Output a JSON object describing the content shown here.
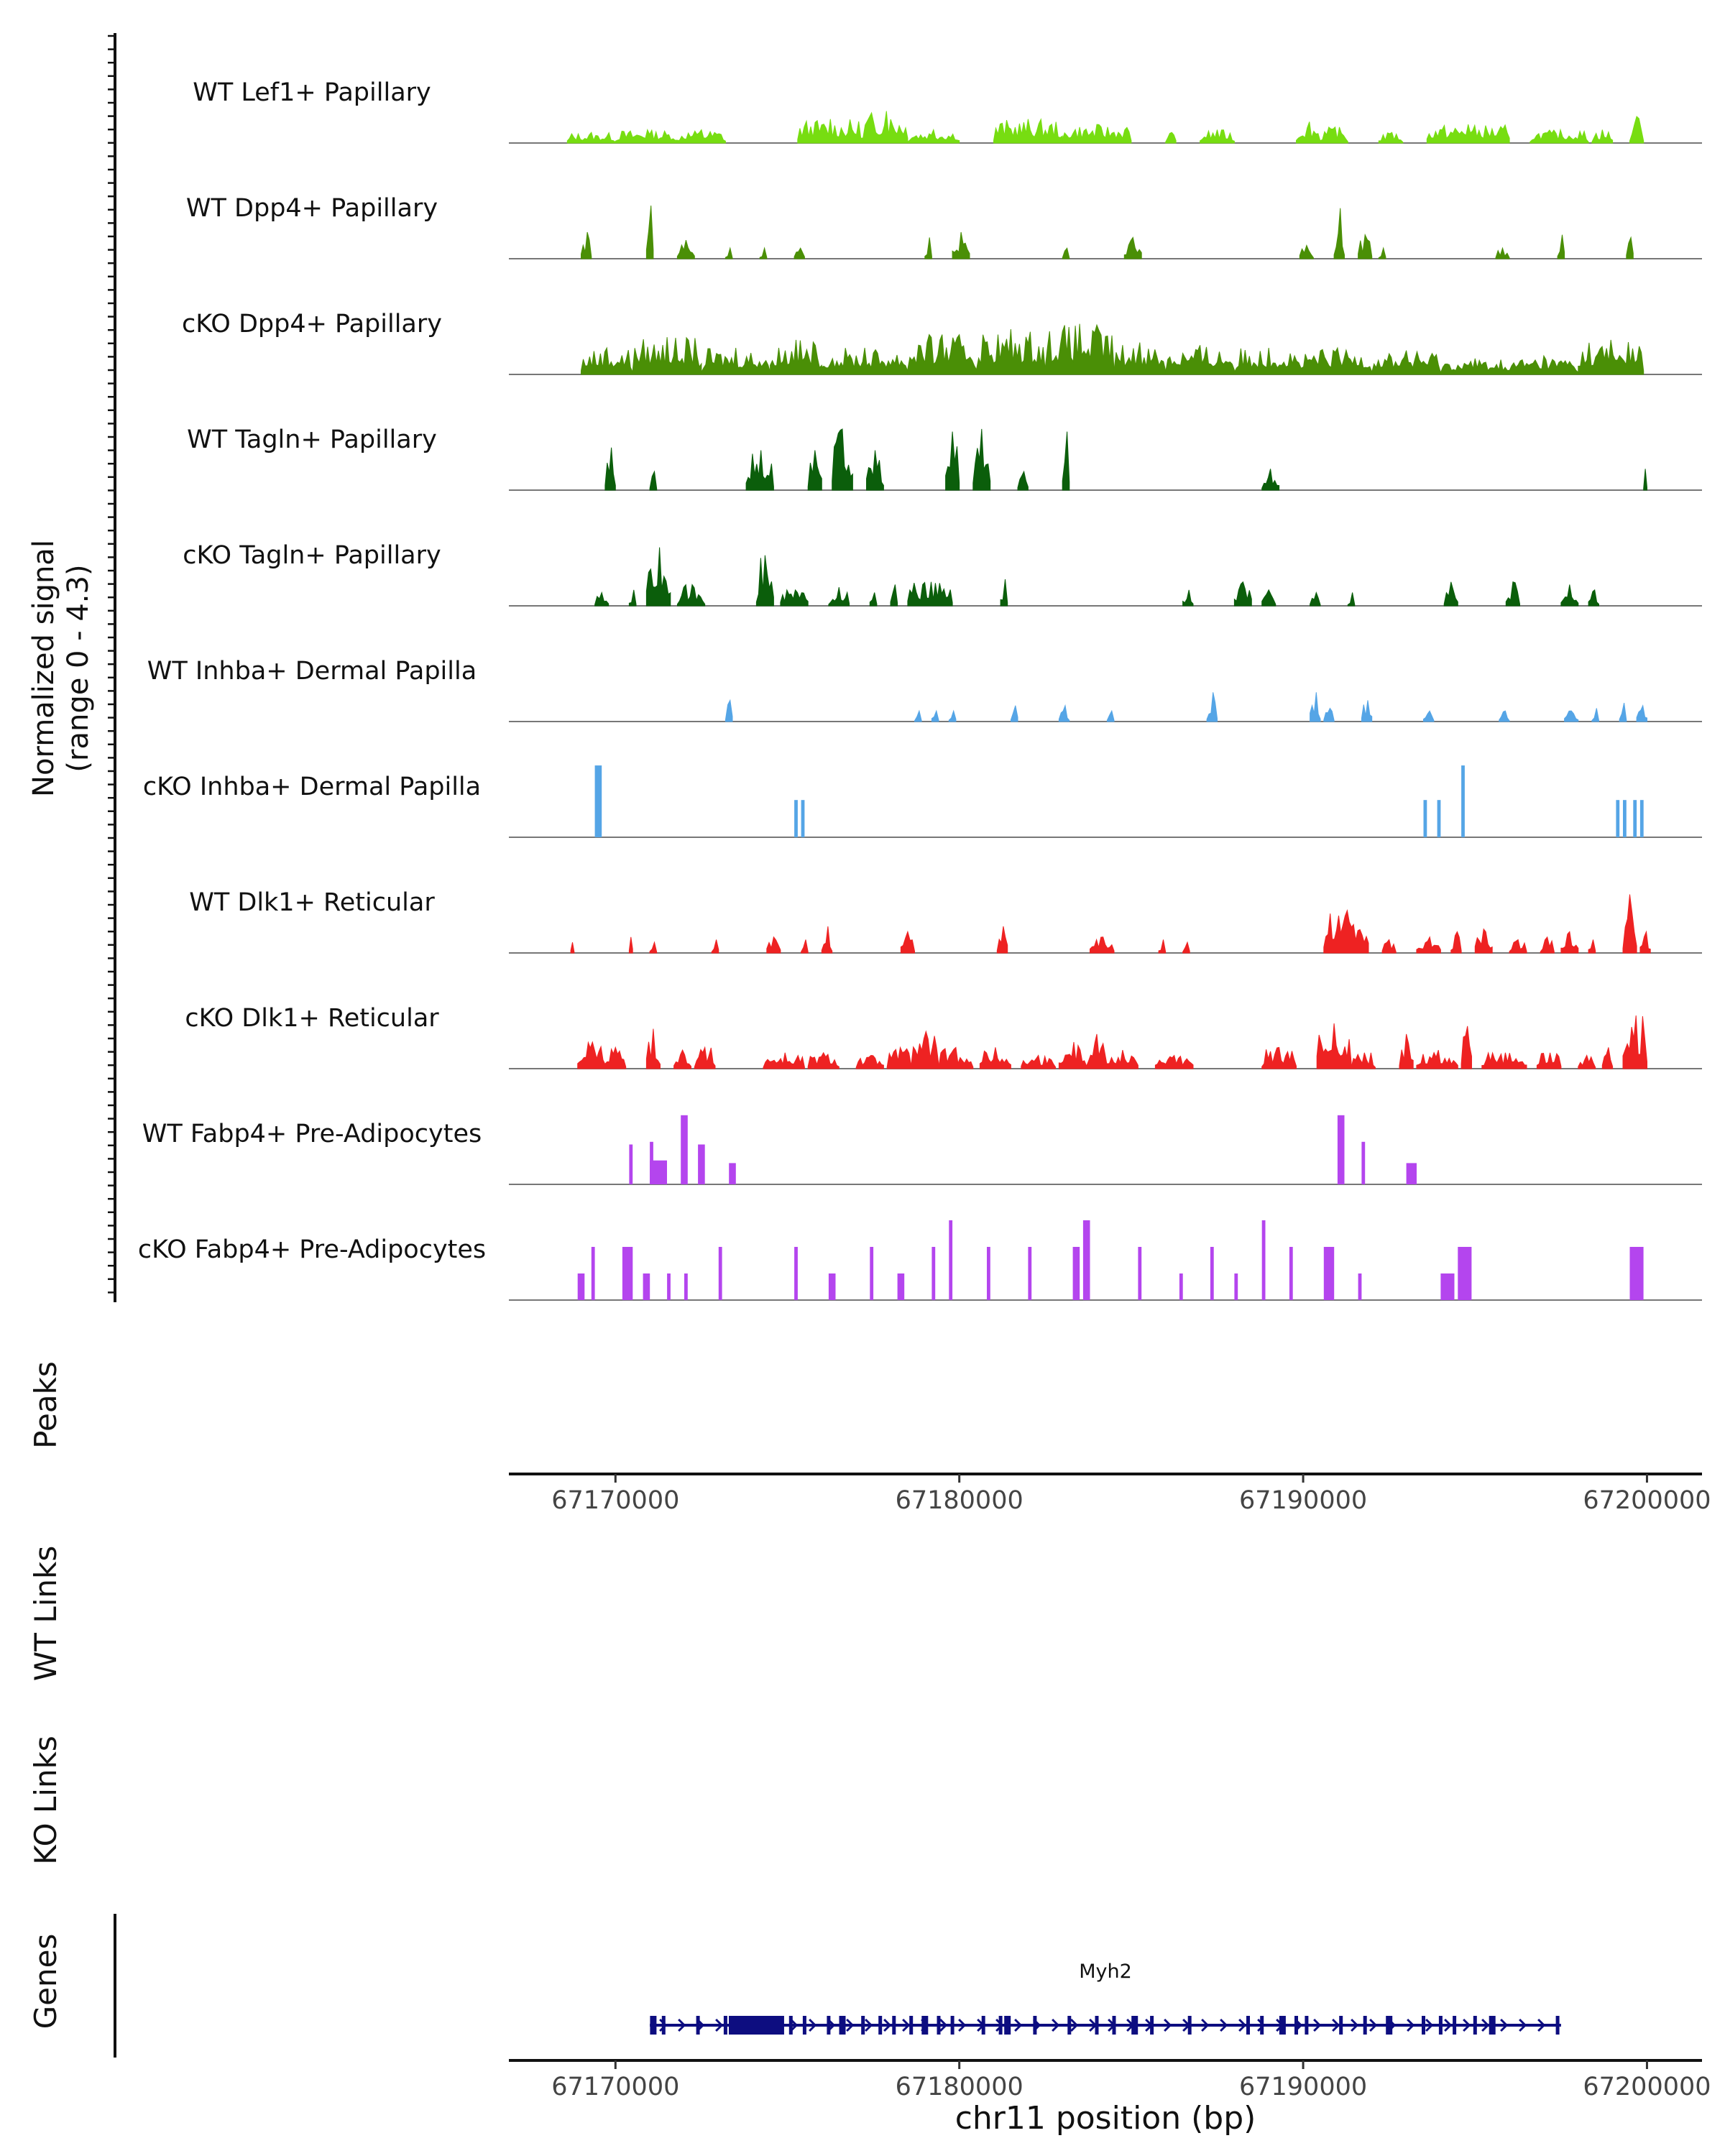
{
  "chart_data": {
    "type": "area",
    "title": "",
    "signal_axis": {
      "label_line1": "Normalized signal",
      "label_line2": "(range 0 - 4.3)",
      "ylim": [
        0,
        4.3
      ]
    },
    "x_axis": {
      "chromosome": "chr11",
      "xlabel": "chr11 position (bp)",
      "xlim": [
        67166900,
        67201600
      ],
      "ticks": [
        "67170000",
        "67180000",
        "67190000",
        "67200000"
      ],
      "tick_values": [
        67170000,
        67180000,
        67190000,
        67200000
      ]
    },
    "tracks": [
      {
        "name": "WT Lef1+ Papillary",
        "color": "#77dd11",
        "style": "area",
        "segments": [
          [
            67168.6,
            67170.0,
            0.4
          ],
          [
            67170.0,
            67171.8,
            0.5
          ],
          [
            67171.8,
            67173.2,
            0.5
          ],
          [
            67175.3,
            67177.2,
            0.9
          ],
          [
            67177.2,
            67178.5,
            1.2
          ],
          [
            67178.5,
            67180.0,
            0.5
          ],
          [
            67181.0,
            67183.0,
            0.9
          ],
          [
            67183.0,
            67185.0,
            0.7
          ],
          [
            67186.0,
            67186.3,
            0.4
          ],
          [
            67187.0,
            67188.0,
            0.5
          ],
          [
            67189.8,
            67190.5,
            0.8
          ],
          [
            67190.5,
            67191.3,
            0.6
          ],
          [
            67192.2,
            67192.9,
            0.4
          ],
          [
            67193.6,
            67196.0,
            0.7
          ],
          [
            67196.6,
            67198.3,
            0.5
          ],
          [
            67198.4,
            67199.0,
            0.5
          ],
          [
            67199.5,
            67199.9,
            1.0
          ]
        ]
      },
      {
        "name": "WT Dpp4+ Papillary",
        "color": "#4a8f06",
        "style": "area",
        "segments": [
          [
            67169.0,
            67169.3,
            1.0
          ],
          [
            67170.9,
            67171.1,
            2.0
          ],
          [
            67171.8,
            67172.3,
            0.7
          ],
          [
            67173.2,
            67173.4,
            0.4
          ],
          [
            67174.2,
            67174.4,
            0.4
          ],
          [
            67175.2,
            67175.5,
            0.4
          ],
          [
            67179.0,
            67179.2,
            0.8
          ],
          [
            67179.8,
            67180.3,
            1.0
          ],
          [
            67183.0,
            67183.2,
            0.4
          ],
          [
            67184.8,
            67185.3,
            0.8
          ],
          [
            67189.9,
            67190.3,
            0.5
          ],
          [
            67190.9,
            67191.2,
            1.9
          ],
          [
            67191.6,
            67192.0,
            0.9
          ],
          [
            67192.2,
            67192.4,
            0.4
          ],
          [
            67195.6,
            67196.0,
            0.4
          ],
          [
            67197.4,
            67197.6,
            0.9
          ],
          [
            67199.4,
            67199.6,
            0.8
          ]
        ]
      },
      {
        "name": "cKO Dpp4+ Papillary",
        "color": "#4a8f06",
        "style": "area",
        "segments": [
          [
            67169.0,
            67170.5,
            1.0
          ],
          [
            67170.5,
            67172.5,
            1.4
          ],
          [
            67172.5,
            67174.5,
            1.0
          ],
          [
            67174.5,
            67176.0,
            1.3
          ],
          [
            67176.0,
            67178.5,
            1.0
          ],
          [
            67178.5,
            67180.5,
            1.5
          ],
          [
            67180.5,
            67182.5,
            1.7
          ],
          [
            67182.5,
            67184.5,
            1.9
          ],
          [
            67184.5,
            67186.0,
            1.2
          ],
          [
            67186.0,
            67188.0,
            1.1
          ],
          [
            67188.0,
            67190.0,
            1.0
          ],
          [
            67190.0,
            67192.0,
            1.0
          ],
          [
            67192.0,
            67194.0,
            0.9
          ],
          [
            67194.0,
            67196.0,
            0.6
          ],
          [
            67196.0,
            67198.0,
            0.7
          ],
          [
            67198.0,
            67199.9,
            1.3
          ]
        ]
      },
      {
        "name": "WT Tagln+ Papillary",
        "color": "#0b5e0b",
        "style": "area",
        "segments": [
          [
            67169.7,
            67170.0,
            1.6
          ],
          [
            67171.0,
            67171.2,
            0.7
          ],
          [
            67173.8,
            67174.6,
            1.5
          ],
          [
            67175.6,
            67176.0,
            1.5
          ],
          [
            67176.3,
            67176.9,
            2.3
          ],
          [
            67177.3,
            67177.8,
            1.5
          ],
          [
            67179.6,
            67180.0,
            2.2
          ],
          [
            67180.4,
            67180.9,
            2.3
          ],
          [
            67181.7,
            67182.0,
            0.7
          ],
          [
            67183.0,
            67183.2,
            2.2
          ],
          [
            67188.8,
            67189.3,
            0.8
          ],
          [
            67199.9,
            67200.0,
            0.8
          ]
        ]
      },
      {
        "name": "cKO Tagln+ Papillary",
        "color": "#0b5e0b",
        "style": "area",
        "segments": [
          [
            67169.4,
            67169.8,
            0.5
          ],
          [
            67170.4,
            67170.6,
            0.6
          ],
          [
            67170.9,
            67171.6,
            2.2
          ],
          [
            67171.8,
            67172.6,
            0.8
          ],
          [
            67174.1,
            67174.6,
            1.9
          ],
          [
            67174.8,
            67175.6,
            0.6
          ],
          [
            67176.2,
            67176.8,
            0.7
          ],
          [
            67177.4,
            67177.6,
            0.5
          ],
          [
            67178.0,
            67178.2,
            0.8
          ],
          [
            67178.5,
            67179.8,
            0.9
          ],
          [
            67181.2,
            67181.4,
            1.0
          ],
          [
            67186.5,
            67186.8,
            0.6
          ],
          [
            67188.0,
            67188.5,
            0.9
          ],
          [
            67188.8,
            67189.2,
            0.6
          ],
          [
            67190.2,
            67190.5,
            0.5
          ],
          [
            67191.3,
            67191.5,
            0.5
          ],
          [
            67194.1,
            67194.5,
            0.9
          ],
          [
            67195.9,
            67196.3,
            0.9
          ],
          [
            67197.5,
            67198.0,
            0.8
          ],
          [
            67198.3,
            67198.6,
            0.6
          ]
        ]
      },
      {
        "name": "WT Inhba+ Dermal Papilla",
        "color": "#55a5e6",
        "style": "area",
        "segments": [
          [
            67173.2,
            67173.4,
            0.8
          ],
          [
            67178.7,
            67178.9,
            0.4
          ],
          [
            67179.2,
            67179.4,
            0.4
          ],
          [
            67179.7,
            67179.9,
            0.4
          ],
          [
            67181.5,
            67181.7,
            0.6
          ],
          [
            67182.9,
            67183.2,
            0.6
          ],
          [
            67184.3,
            67184.5,
            0.4
          ],
          [
            67187.2,
            67187.5,
            1.1
          ],
          [
            67190.2,
            67190.5,
            1.1
          ],
          [
            67190.6,
            67190.9,
            0.5
          ],
          [
            67191.7,
            67192.0,
            0.8
          ],
          [
            67193.5,
            67193.8,
            0.4
          ],
          [
            67195.7,
            67196.0,
            0.4
          ],
          [
            67197.6,
            67198.0,
            0.4
          ],
          [
            67198.4,
            67198.6,
            0.5
          ],
          [
            67199.2,
            67199.4,
            0.7
          ],
          [
            67199.7,
            67200.0,
            0.6
          ]
        ]
      },
      {
        "name": "cKO Inhba+ Dermal Papilla",
        "color": "#55a5e6",
        "style": "bars",
        "segments": [
          [
            67169.4,
            67169.6,
            2.7
          ],
          [
            67175.2,
            67175.3,
            1.4
          ],
          [
            67175.4,
            67175.5,
            1.4
          ],
          [
            67193.5,
            67193.6,
            1.4
          ],
          [
            67193.9,
            67194.0,
            1.4
          ],
          [
            67194.6,
            67194.7,
            2.7
          ],
          [
            67199.1,
            67199.2,
            1.4
          ],
          [
            67199.3,
            67199.4,
            1.4
          ],
          [
            67199.6,
            67199.7,
            1.4
          ],
          [
            67199.8,
            67199.9,
            1.4
          ]
        ]
      },
      {
        "name": "WT Dlk1+ Reticular",
        "color": "#ee2222",
        "style": "area",
        "segments": [
          [
            67168.7,
            67168.8,
            0.4
          ],
          [
            67170.4,
            67170.5,
            0.6
          ],
          [
            67171.0,
            67171.2,
            0.4
          ],
          [
            67172.8,
            67173.0,
            0.5
          ],
          [
            67174.4,
            67174.8,
            0.6
          ],
          [
            67175.4,
            67175.6,
            0.5
          ],
          [
            67176.0,
            67176.3,
            1.0
          ],
          [
            67178.3,
            67178.7,
            0.8
          ],
          [
            67181.1,
            67181.4,
            1.0
          ],
          [
            67183.8,
            67184.5,
            0.6
          ],
          [
            67185.8,
            67186.0,
            0.5
          ],
          [
            67186.5,
            67186.7,
            0.4
          ],
          [
            67190.6,
            67191.9,
            1.6
          ],
          [
            67192.3,
            67192.7,
            0.5
          ],
          [
            67193.3,
            67194.0,
            0.6
          ],
          [
            67194.3,
            67194.6,
            0.8
          ],
          [
            67195.0,
            67195.5,
            0.9
          ],
          [
            67196.0,
            67196.5,
            0.5
          ],
          [
            67196.9,
            67197.3,
            0.6
          ],
          [
            67197.5,
            67198.0,
            0.8
          ],
          [
            67198.3,
            67198.5,
            0.5
          ],
          [
            67199.3,
            67199.7,
            2.2
          ],
          [
            67199.8,
            67200.1,
            0.8
          ]
        ]
      },
      {
        "name": "cKO Dlk1+ Reticular",
        "color": "#ee2222",
        "style": "area",
        "segments": [
          [
            67168.9,
            67169.7,
            1.0
          ],
          [
            67169.7,
            67170.3,
            0.8
          ],
          [
            67170.9,
            67171.3,
            1.5
          ],
          [
            67171.7,
            67172.2,
            0.7
          ],
          [
            67172.3,
            67172.9,
            0.8
          ],
          [
            67174.3,
            67175.5,
            0.6
          ],
          [
            67175.6,
            67176.5,
            0.6
          ],
          [
            67177.0,
            67177.8,
            0.5
          ],
          [
            67177.9,
            67178.6,
            0.8
          ],
          [
            67178.6,
            67179.4,
            1.4
          ],
          [
            67179.4,
            67180.4,
            0.8
          ],
          [
            67180.6,
            67181.5,
            0.8
          ],
          [
            67181.8,
            67182.8,
            0.5
          ],
          [
            67182.9,
            67183.7,
            1.0
          ],
          [
            67183.7,
            67184.3,
            1.3
          ],
          [
            67184.3,
            67185.2,
            0.7
          ],
          [
            67185.7,
            67186.8,
            0.5
          ],
          [
            67188.8,
            67189.8,
            0.8
          ],
          [
            67190.4,
            67191.4,
            1.7
          ],
          [
            67191.4,
            67192.1,
            0.6
          ],
          [
            67192.8,
            67193.2,
            1.3
          ],
          [
            67193.3,
            67194.5,
            0.7
          ],
          [
            67194.6,
            67194.9,
            1.6
          ],
          [
            67195.2,
            67196.5,
            0.6
          ],
          [
            67196.8,
            67197.5,
            0.6
          ],
          [
            67198.0,
            67198.5,
            0.5
          ],
          [
            67198.7,
            67199.0,
            0.8
          ],
          [
            67199.3,
            67200.0,
            2.0
          ]
        ]
      },
      {
        "name": "WT Fabp4+ Pre-Adipocytes",
        "color": "#b445ee",
        "style": "bars",
        "segments": [
          [
            67170.4,
            67170.5,
            1.5
          ],
          [
            67171.0,
            67171.5,
            0.9
          ],
          [
            67171.0,
            67171.1,
            1.6
          ],
          [
            67171.9,
            67172.1,
            2.6
          ],
          [
            67172.4,
            67172.6,
            1.5
          ],
          [
            67173.3,
            67173.5,
            0.8
          ],
          [
            67191.0,
            67191.2,
            2.6
          ],
          [
            67191.7,
            67191.8,
            1.6
          ],
          [
            67193.0,
            67193.3,
            0.8
          ]
        ]
      },
      {
        "name": "cKO Fabp4+ Pre-Adipocytes",
        "color": "#b445ee",
        "style": "bars",
        "segments": [
          [
            67168.9,
            67169.1,
            1.0
          ],
          [
            67169.3,
            67169.4,
            2.0
          ],
          [
            67170.2,
            67170.5,
            2.0
          ],
          [
            67170.8,
            67171.0,
            1.0
          ],
          [
            67171.5,
            67171.6,
            1.0
          ],
          [
            67172.0,
            67172.1,
            1.0
          ],
          [
            67173.0,
            67173.1,
            2.0
          ],
          [
            67175.2,
            67175.3,
            2.0
          ],
          [
            67176.2,
            67176.4,
            1.0
          ],
          [
            67177.4,
            67177.5,
            2.0
          ],
          [
            67178.2,
            67178.4,
            1.0
          ],
          [
            67179.2,
            67179.3,
            2.0
          ],
          [
            67179.7,
            67179.8,
            3.0
          ],
          [
            67180.8,
            67180.9,
            2.0
          ],
          [
            67182.0,
            67182.1,
            2.0
          ],
          [
            67183.3,
            67183.5,
            2.0
          ],
          [
            67183.6,
            67183.8,
            3.0
          ],
          [
            67185.2,
            67185.3,
            2.0
          ],
          [
            67186.4,
            67186.5,
            1.0
          ],
          [
            67187.3,
            67187.4,
            2.0
          ],
          [
            67188.0,
            67188.1,
            1.0
          ],
          [
            67188.8,
            67188.9,
            3.0
          ],
          [
            67189.6,
            67189.7,
            2.0
          ],
          [
            67190.6,
            67190.9,
            2.0
          ],
          [
            67191.6,
            67191.7,
            1.0
          ],
          [
            67194.0,
            67194.4,
            1.0
          ],
          [
            67194.5,
            67194.9,
            2.0
          ],
          [
            67199.5,
            67199.9,
            2.0
          ]
        ]
      }
    ],
    "panels": {
      "peaks": "Peaks",
      "wt_links": "WT Links",
      "ko_links": "KO Links",
      "genes": "Genes"
    },
    "gene": {
      "name": "Myh2",
      "start": 67171000,
      "end": 67197500,
      "strand": "+",
      "color": "#0d0d80",
      "exon_starts": [
        67171.1,
        67171.4,
        67172.4,
        67173.2,
        67173.4,
        67173.6,
        67173.8,
        67174.0,
        67174.2,
        67174.4,
        67174.6,
        67174.8,
        67175.1,
        67175.5,
        67176.2,
        67176.6,
        67177.2,
        67177.7,
        67178.1,
        67178.6,
        67179.0,
        67179.4,
        67179.8,
        67180.7,
        67181.2,
        67181.4,
        67182.2,
        67183.2,
        67184.0,
        67184.5,
        67185.1,
        67185.6,
        67186.7,
        67188.4,
        67188.8,
        67189.4,
        67189.8,
        67190.1,
        67191.1,
        67191.8,
        67192.5,
        67193.5,
        67194.0,
        67194.4,
        67195.0,
        67195.5,
        67197.4
      ]
    }
  }
}
